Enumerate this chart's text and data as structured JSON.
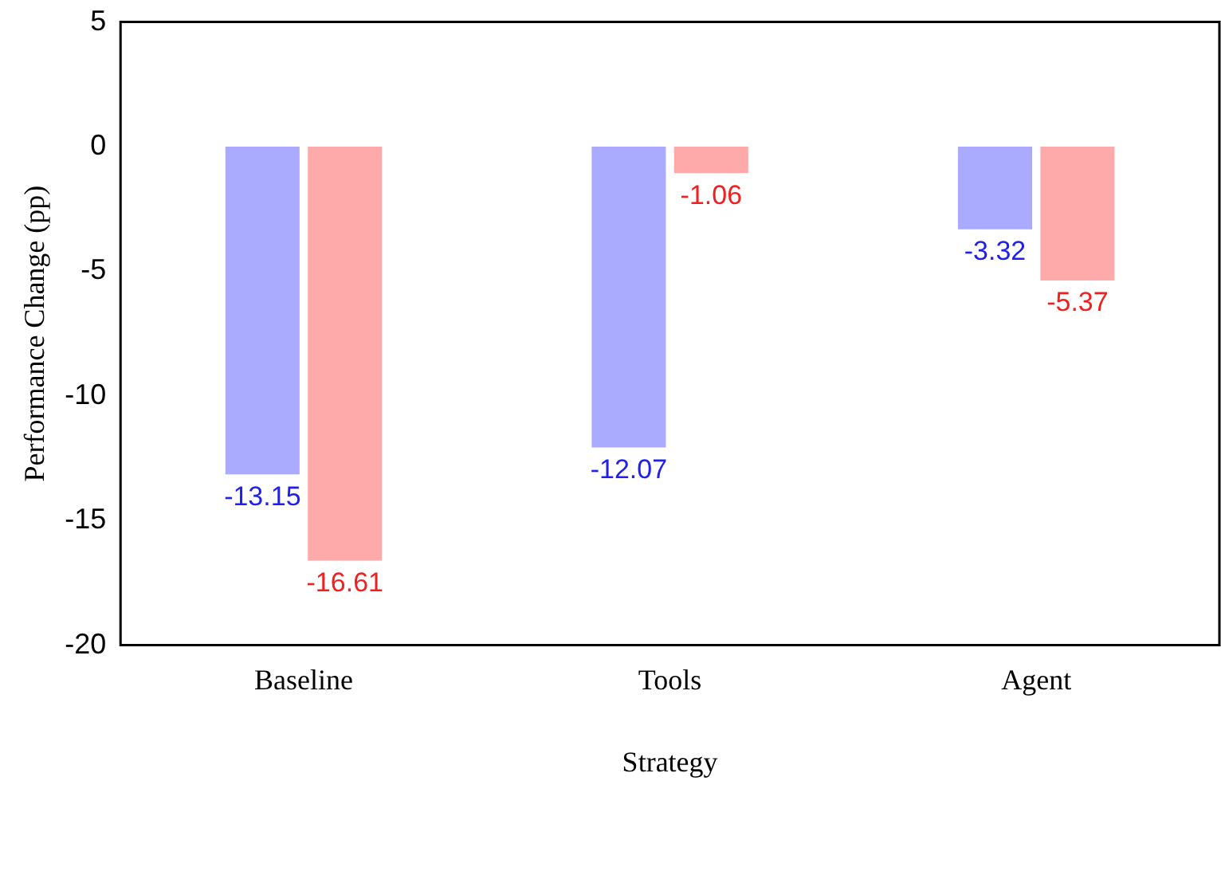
{
  "chart_data": {
    "type": "bar",
    "xlabel": "Strategy",
    "ylabel": "Performance Change (pp)",
    "categories": [
      "Baseline",
      "Tools",
      "Agent"
    ],
    "series": [
      {
        "color": "#aaaaff",
        "values": [
          -13.15,
          -12.07,
          -3.32
        ]
      },
      {
        "color": "#ffaaaa",
        "values": [
          -16.61,
          -1.06,
          -5.37
        ]
      }
    ],
    "ylim": [
      -20,
      5
    ],
    "yticks": [
      -20,
      -15,
      -10,
      -5,
      0,
      5
    ],
    "grid": false,
    "data_labels": true
  }
}
